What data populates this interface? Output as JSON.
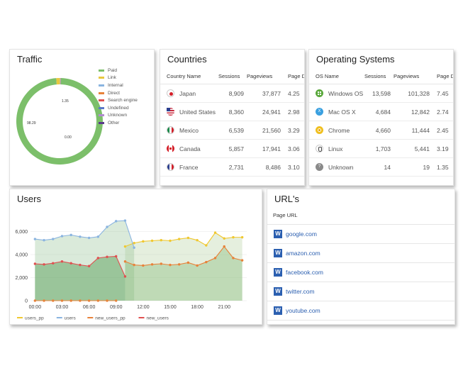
{
  "traffic": {
    "title": "Traffic",
    "legend": [
      {
        "label": "Paid",
        "color": "#7cbf6a"
      },
      {
        "label": "Link",
        "color": "#e8c840"
      },
      {
        "label": "Internal",
        "color": "#8ab4e0"
      },
      {
        "label": "Direct",
        "color": "#e8823a"
      },
      {
        "label": "Search engine",
        "color": "#e05050"
      },
      {
        "label": "Undefined",
        "color": "#5a78c8"
      },
      {
        "label": "Unknown",
        "color": "#b08ad0"
      },
      {
        "label": "Other",
        "color": "#5a3a8a"
      }
    ],
    "labels": {
      "paid": "98.29",
      "link": "1.35",
      "zero": "0.00"
    },
    "chart_data": {
      "type": "pie",
      "categories": [
        "Paid",
        "Link",
        "Internal",
        "Direct",
        "Search engine",
        "Undefined",
        "Unknown",
        "Other"
      ],
      "values": [
        98.29,
        1.35,
        0.1,
        0.1,
        0.06,
        0.05,
        0.03,
        0.02
      ]
    }
  },
  "countries": {
    "title": "Countries",
    "headers": [
      "Country Name",
      "Sessions",
      "Pageviews",
      "Page D"
    ],
    "rows": [
      {
        "name": "Japan",
        "sessions": "8,909",
        "pageviews": "37,877",
        "pd": "4.25",
        "flag": "japan-flag-icon"
      },
      {
        "name": "United States",
        "sessions": "8,360",
        "pageviews": "24,941",
        "pd": "2.98",
        "flag": "us-flag-icon"
      },
      {
        "name": "Mexico",
        "sessions": "6,539",
        "pageviews": "21,560",
        "pd": "3.29",
        "flag": "mexico-flag-icon"
      },
      {
        "name": "Canada",
        "sessions": "5,857",
        "pageviews": "17,941",
        "pd": "3.06",
        "flag": "canada-flag-icon"
      },
      {
        "name": "France",
        "sessions": "2,731",
        "pageviews": "8,486",
        "pd": "3.10",
        "flag": "france-flag-icon"
      }
    ]
  },
  "os": {
    "title": "Operating Systems",
    "headers": [
      "OS Name",
      "Sessions",
      "Pageviews",
      "Page D"
    ],
    "rows": [
      {
        "name": "Windows OS",
        "sessions": "13,598",
        "pageviews": "101,328",
        "pd": "7.45",
        "icon": "windows-icon"
      },
      {
        "name": "Mac OS X",
        "sessions": "4,684",
        "pageviews": "12,842",
        "pd": "2.74",
        "icon": "mac-icon"
      },
      {
        "name": "Chrome",
        "sessions": "4,660",
        "pageviews": "11,444",
        "pd": "2.45",
        "icon": "chrome-icon"
      },
      {
        "name": "Linux",
        "sessions": "1,703",
        "pageviews": "5,441",
        "pd": "3.19",
        "icon": "linux-icon"
      },
      {
        "name": "Unknown",
        "sessions": "14",
        "pageviews": "19",
        "pd": "1.35",
        "icon": "unknown-os-icon"
      }
    ]
  },
  "users": {
    "title": "Users",
    "chart_data": {
      "type": "line",
      "x": [
        "00:00",
        "01:00",
        "02:00",
        "03:00",
        "04:00",
        "05:00",
        "06:00",
        "07:00",
        "08:00",
        "09:00",
        "10:00",
        "11:00",
        "12:00",
        "13:00",
        "14:00",
        "15:00",
        "16:00",
        "17:00",
        "18:00",
        "19:00",
        "20:00",
        "21:00",
        "22:00",
        "23:00"
      ],
      "xticks": [
        "00:00",
        "03:00",
        "06:00",
        "09:00",
        "12:00",
        "15:00",
        "18:00",
        "21:00"
      ],
      "yticks": [
        "0",
        "2,000",
        "4,000",
        "6,000"
      ],
      "ylim": [
        0,
        7200
      ],
      "series": [
        {
          "name": "users_pp",
          "color": "#f0c830",
          "values": [
            null,
            null,
            null,
            null,
            null,
            null,
            null,
            null,
            null,
            null,
            4700,
            5000,
            5150,
            5200,
            5250,
            5200,
            5350,
            5450,
            5250,
            4800,
            5900,
            5400,
            5500,
            5500
          ]
        },
        {
          "name": "users",
          "color": "#8ab4e0",
          "values": [
            5350,
            5250,
            5350,
            5600,
            5700,
            5550,
            5450,
            5550,
            6400,
            6900,
            6950,
            4600,
            null,
            null,
            null,
            null,
            null,
            null,
            null,
            null,
            null,
            null,
            null,
            null
          ]
        },
        {
          "name": "new_users_pp",
          "color": "#e8823a",
          "values": [
            null,
            null,
            null,
            null,
            null,
            null,
            null,
            null,
            null,
            null,
            3400,
            3100,
            3050,
            3150,
            3200,
            3100,
            3150,
            3300,
            3050,
            3350,
            3700,
            4700,
            3700,
            3500
          ]
        },
        {
          "name": "new_users",
          "color": "#e05050",
          "values": [
            3200,
            3150,
            3250,
            3400,
            3250,
            3100,
            3000,
            3700,
            3800,
            3850,
            2100,
            null,
            null,
            null,
            null,
            null,
            null,
            null,
            null,
            null,
            null,
            null,
            null,
            null
          ]
        }
      ]
    }
  },
  "urls": {
    "title": "URL's",
    "header": "Page URL",
    "items": [
      "google.com",
      "amazon.com",
      "facebook.com",
      "twitter.com",
      "youtube.com"
    ]
  }
}
